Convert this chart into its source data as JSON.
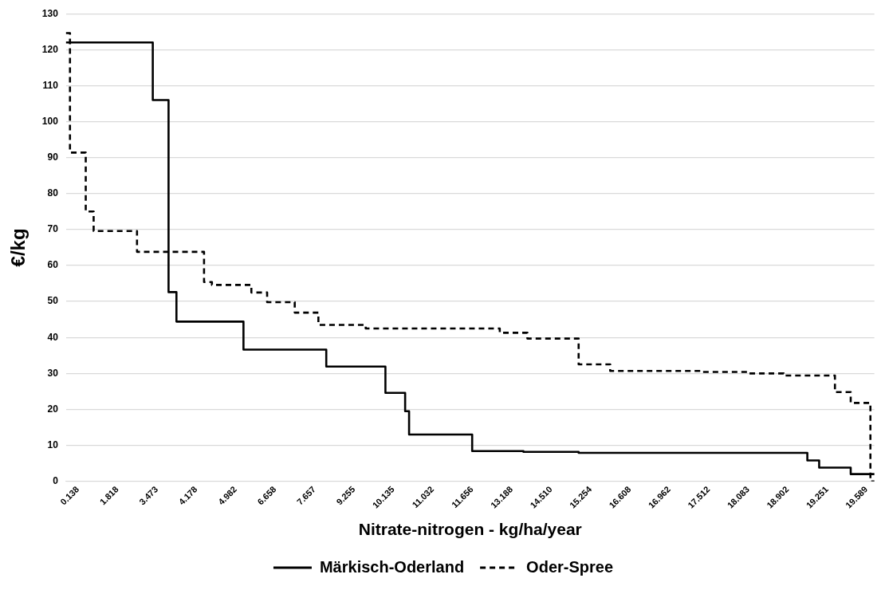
{
  "chart_data": {
    "type": "step",
    "xlabel": "Nitrate-nitrogen - kg/ha/year",
    "ylabel": "€/kg",
    "categories": [
      null,
      null,
      null,
      "0.138",
      null,
      null,
      null,
      null,
      null,
      null,
      null,
      null,
      null,
      "1.818",
      null,
      null,
      null,
      null,
      null,
      null,
      null,
      null,
      null,
      "3.473",
      null,
      null,
      null,
      null,
      null,
      null,
      null,
      null,
      null,
      "4.178",
      null,
      null,
      null,
      null,
      null,
      null,
      null,
      null,
      null,
      "4.982",
      null,
      null,
      null,
      null,
      null,
      null,
      null,
      null,
      null,
      "6.658",
      null,
      null,
      null,
      null,
      null,
      null,
      null,
      null,
      null,
      "7.657",
      null,
      null,
      null,
      null,
      null,
      null,
      null,
      null,
      null,
      "9.255",
      null,
      null,
      null,
      null,
      null,
      null,
      null,
      null,
      null,
      "10.135",
      null,
      null,
      null,
      null,
      null,
      null,
      null,
      null,
      null,
      "11.032",
      null,
      null,
      null,
      null,
      null,
      null,
      null,
      null,
      null,
      "11.656",
      null,
      null,
      null,
      null,
      null,
      null,
      null,
      null,
      null,
      "13.188",
      null,
      null,
      null,
      null,
      null,
      null,
      null,
      null,
      null,
      "14.510",
      null,
      null,
      null,
      null,
      null,
      null,
      null,
      null,
      null,
      "15.254",
      null,
      null,
      null,
      null,
      null,
      null,
      null,
      null,
      null,
      "16.608",
      null,
      null,
      null,
      null,
      null,
      null,
      null,
      null,
      null,
      "16.962",
      null,
      null,
      null,
      null,
      null,
      null,
      null,
      null,
      null,
      "17.512",
      null,
      null,
      null,
      null,
      null,
      null,
      null,
      null,
      null,
      "18.083",
      null,
      null,
      null,
      null,
      null,
      null,
      null,
      null,
      null,
      "18.902",
      null,
      null,
      null,
      null,
      null,
      null,
      null,
      null,
      null,
      "19.251",
      null,
      null,
      null,
      null,
      null,
      null,
      null,
      null,
      null,
      "19.589",
      null,
      null
    ],
    "series": [
      {
        "name": "Märkisch-Oderland",
        "color": "#000000",
        "line_style": "solid",
        "values": [
          122,
          122,
          122,
          122,
          122,
          122,
          122,
          122,
          122,
          122,
          122,
          122,
          122,
          122,
          122,
          122,
          122,
          122,
          122,
          122,
          122,
          122,
          122,
          106,
          106,
          106,
          106,
          52.6,
          52.6,
          44.4,
          44.4,
          44.4,
          44.4,
          44.4,
          44.4,
          44.4,
          44.4,
          44.4,
          44.4,
          44.4,
          44.4,
          44.4,
          44.4,
          44.4,
          44.4,
          44.4,
          36.6,
          36.6,
          36.6,
          36.6,
          36.6,
          36.6,
          36.6,
          36.6,
          36.6,
          36.6,
          36.6,
          36.6,
          36.6,
          36.6,
          36.6,
          36.6,
          36.6,
          36.6,
          36.6,
          36.6,
          36.6,
          31.9,
          31.9,
          31.9,
          31.9,
          31.9,
          31.9,
          31.9,
          31.9,
          31.9,
          31.9,
          31.9,
          31.9,
          31.9,
          31.9,
          31.9,
          24.6,
          24.6,
          24.6,
          24.6,
          24.6,
          19.5,
          13.0,
          13.0,
          13.0,
          13.0,
          13.0,
          13.0,
          13.0,
          13.0,
          13.0,
          13.0,
          13.0,
          13.0,
          13.0,
          13.0,
          13.0,
          13.0,
          8.4,
          8.4,
          8.4,
          8.4,
          8.4,
          8.4,
          8.4,
          8.4,
          8.4,
          8.4,
          8.4,
          8.4,
          8.4,
          8.2,
          8.2,
          8.2,
          8.2,
          8.2,
          8.2,
          8.2,
          8.2,
          8.2,
          8.2,
          8.2,
          8.2,
          8.2,
          8.2,
          7.9,
          7.9,
          7.9,
          7.9,
          7.9,
          7.9,
          7.9,
          7.9,
          7.9,
          7.9,
          7.9,
          7.9,
          7.9,
          7.9,
          7.9,
          7.9,
          7.9,
          7.9,
          7.9,
          7.9,
          7.9,
          7.9,
          7.9,
          7.9,
          7.9,
          7.9,
          7.9,
          7.9,
          7.9,
          7.9,
          7.9,
          7.9,
          7.9,
          7.9,
          7.9,
          7.9,
          7.9,
          7.9,
          7.9,
          7.9,
          7.9,
          7.9,
          7.9,
          7.9,
          7.9,
          7.9,
          7.9,
          7.9,
          7.9,
          7.9,
          7.9,
          7.9,
          7.9,
          7.9,
          7.9,
          7.9,
          7.9,
          7.9,
          5.8,
          5.8,
          5.8,
          3.8,
          3.8,
          3.8,
          3.8,
          3.8,
          3.8,
          3.8,
          3.8,
          2,
          2,
          2,
          2,
          2,
          2
        ]
      },
      {
        "name": "Oder-Spree",
        "color": "#000000",
        "line_style": "dashed",
        "values": [
          124.6,
          124.6,
          91.4,
          91.4,
          91.4,
          91.4,
          75,
          75,
          69.6,
          69.6,
          69.6,
          69.6,
          69.6,
          69.6,
          69.6,
          69.6,
          69.6,
          69.6,
          69.6,
          63.8,
          63.8,
          63.8,
          63.8,
          63.8,
          63.8,
          63.8,
          63.8,
          63.8,
          63.8,
          63.8,
          63.8,
          63.8,
          63.8,
          63.8,
          63.8,
          63.8,
          55.4,
          55.4,
          54.6,
          54.6,
          54.6,
          54.6,
          54.6,
          54.6,
          54.6,
          54.6,
          54.6,
          54.6,
          52.5,
          52.5,
          52.5,
          52.5,
          49.8,
          49.8,
          49.8,
          49.8,
          49.8,
          49.8,
          49.8,
          46.9,
          46.9,
          46.9,
          46.9,
          46.9,
          46.9,
          43.5,
          43.5,
          43.5,
          43.5,
          43.5,
          43.5,
          43.5,
          43.5,
          43.5,
          43.5,
          43.5,
          43.5,
          42.5,
          42.5,
          42.5,
          42.5,
          42.5,
          42.5,
          42.5,
          42.5,
          42.5,
          42.5,
          42.5,
          42.5,
          42.5,
          42.5,
          42.5,
          42.5,
          42.5,
          42.5,
          42.5,
          42.5,
          42.5,
          42.5,
          42.5,
          42.5,
          42.5,
          42.5,
          42.5,
          42.5,
          42.5,
          42.5,
          42.5,
          42.5,
          42.5,
          42.5,
          41.3,
          41.3,
          41.3,
          41.3,
          41.3,
          41.3,
          41.3,
          39.7,
          39.7,
          39.7,
          39.7,
          39.7,
          39.7,
          39.7,
          39.7,
          39.7,
          39.7,
          39.7,
          39.7,
          39.7,
          32.5,
          32.5,
          32.5,
          32.5,
          32.5,
          32.5,
          32.5,
          32.5,
          30.7,
          30.7,
          30.7,
          30.7,
          30.7,
          30.7,
          30.7,
          30.7,
          30.7,
          30.7,
          30.7,
          30.7,
          30.7,
          30.7,
          30.7,
          30.7,
          30.7,
          30.7,
          30.7,
          30.7,
          30.7,
          30.7,
          30.7,
          30.4,
          30.4,
          30.4,
          30.4,
          30.4,
          30.4,
          30.4,
          30.4,
          30.4,
          30.4,
          30.4,
          30.4,
          30.0,
          30.0,
          30.0,
          30.0,
          30.0,
          30.0,
          30.0,
          30.0,
          30.0,
          29.4,
          29.4,
          29.4,
          29.4,
          29.4,
          29.4,
          29.4,
          29.4,
          29.4,
          29.4,
          29.4,
          29.4,
          29.4,
          24.8,
          24.8,
          24.8,
          24.8,
          21.8,
          21.8,
          21.8,
          21.8,
          21.8,
          0
        ]
      }
    ],
    "ylim": [
      0,
      130
    ],
    "yticks": [
      0,
      10,
      20,
      30,
      40,
      50,
      60,
      70,
      80,
      90,
      100,
      110,
      120,
      130
    ],
    "grid": "y",
    "legend": "bottom"
  }
}
